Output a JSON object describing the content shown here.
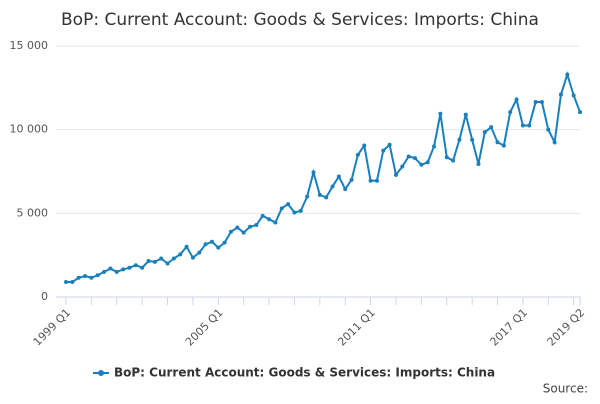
{
  "chart_data": {
    "type": "line",
    "title": "BoP: Current Account: Goods & Services: Imports: China",
    "categories": [
      "1999 Q1",
      null,
      null,
      null,
      null,
      null,
      null,
      null,
      null,
      null,
      null,
      null,
      null,
      null,
      null,
      null,
      null,
      null,
      null,
      null,
      null,
      null,
      null,
      null,
      "2005 Q1",
      null,
      null,
      null,
      null,
      null,
      null,
      null,
      null,
      null,
      null,
      null,
      null,
      null,
      null,
      null,
      null,
      null,
      null,
      null,
      null,
      null,
      null,
      null,
      "2011 Q1",
      null,
      null,
      null,
      null,
      null,
      null,
      null,
      null,
      null,
      null,
      null,
      null,
      null,
      null,
      null,
      null,
      null,
      null,
      null,
      null,
      null,
      null,
      null,
      "2017 Q1",
      null,
      null,
      null,
      null,
      null,
      null,
      null,
      null,
      "2019 Q2"
    ],
    "series": [
      {
        "name": "BoP: Current Account: Goods & Services: Imports: China",
        "color": "#1a7fbd",
        "values": [
          900,
          900,
          1150,
          1250,
          1150,
          1300,
          1500,
          1700,
          1500,
          1650,
          1750,
          1900,
          1750,
          2150,
          2100,
          2300,
          2000,
          2300,
          2550,
          3000,
          2350,
          2650,
          3150,
          3300,
          2950,
          3250,
          3900,
          4150,
          3850,
          4200,
          4300,
          4850,
          4650,
          4450,
          5300,
          5550,
          5050,
          5150,
          6000,
          7450,
          6100,
          5950,
          6600,
          7200,
          6450,
          7000,
          8500,
          9050,
          6950,
          6950,
          8750,
          9100,
          7300,
          7800,
          8400,
          8300,
          7900,
          8050,
          9000,
          10950,
          8350,
          8150,
          9400,
          10900,
          9400,
          7950,
          9850,
          10150,
          9250,
          9050,
          11050,
          11800,
          10250,
          10250,
          11650,
          11650,
          10000,
          9250,
          12100,
          13300,
          12050,
          11050
        ]
      }
    ],
    "ylim": [
      0,
      15000
    ],
    "yticks": [
      0,
      {
        "value": 5000,
        "label": "5 000"
      },
      {
        "value": 10000,
        "label": "10 000"
      },
      {
        "value": 15000,
        "label": "15 000"
      }
    ],
    "grid": true,
    "source": "Source:"
  }
}
